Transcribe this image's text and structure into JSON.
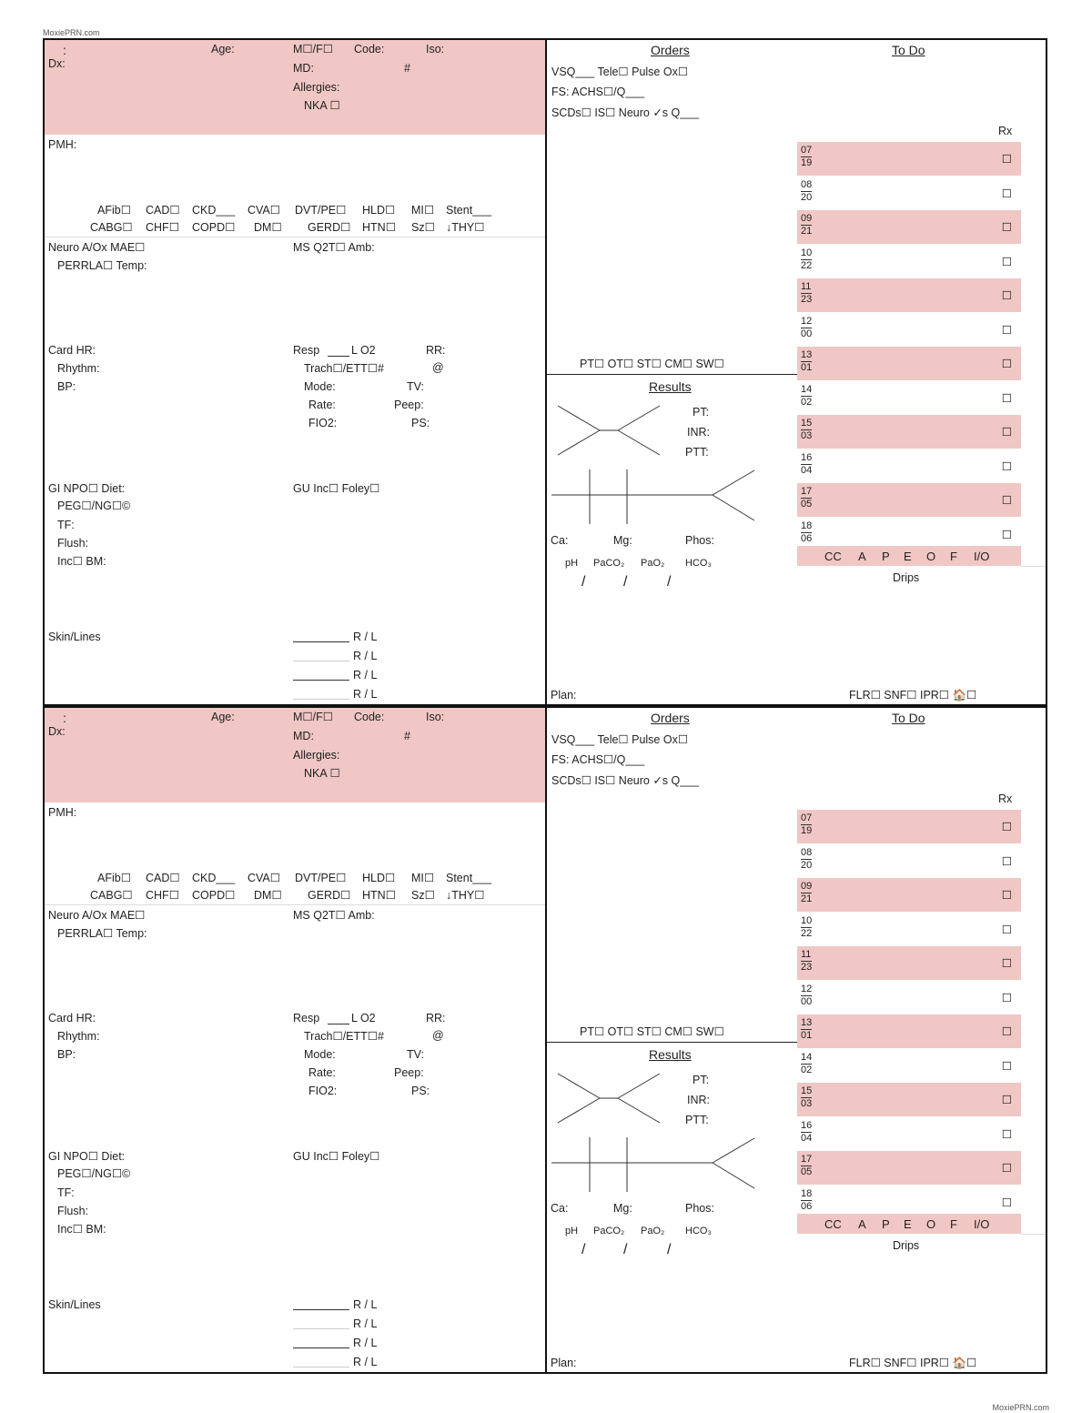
{
  "site": "MoxiePRN.com",
  "sheets": [
    {
      "header": {
        "name_mark": ":",
        "dx": "Dx:",
        "age": "Age:",
        "sex": "M☐/F☐",
        "code": "Code:",
        "iso": "Iso:",
        "md": "MD:",
        "room": "#",
        "allergies": "Allergies:",
        "nka": "NKA ☐"
      },
      "pmh": {
        "label": "PMH:",
        "row1": [
          "AFib☐",
          "CAD☐",
          "CKD___",
          "CVA☐",
          "DVT/PE☐",
          "HLD☐",
          "MI☐",
          "Stent___"
        ],
        "row2": [
          "CABG☐",
          "CHF☐",
          "COPD☐",
          "DM☐",
          "GERD☐",
          "HTN☐",
          "Sz☐",
          "↓THY☐"
        ]
      },
      "neuro": {
        "line1": "Neuro  A/Ox      MAE☐",
        "line2": "PERRLA☐  Temp:",
        "ms": "MS  Q2T☐  Amb:"
      },
      "card": {
        "hr": "Card  HR:",
        "rhythm": "Rhythm:",
        "bp": "BP:"
      },
      "resp": {
        "resp": "Resp",
        "l_o2": "L O2",
        "rr": "RR:",
        "trach": "Trach☐/ETT☐#",
        "at": "@",
        "mode": "Mode:",
        "tv": "TV:",
        "rate": "Rate:",
        "peep": "Peep:",
        "fio2": "FIO2:",
        "ps": "PS:"
      },
      "gi": {
        "line1": "GI  NPO☐  Diet:",
        "line2": "PEG☐/NG☐©",
        "tf": "TF:",
        "flush": "Flush:",
        "inc": "Inc☐  BM:"
      },
      "gu": "GU  Inc☐  Foley☐",
      "skin": {
        "label": "Skin/Lines",
        "rl": [
          "R / L",
          "R / L",
          "R / L",
          "R / L"
        ]
      },
      "orders": {
        "title": "Orders",
        "line1": "VSQ___   Tele☐  Pulse Ox☐",
        "line2": "FS: ACHS☐/Q___",
        "line3": "SCDs☐  IS☐  Neuro ✓s Q___",
        "therapy": "PT☐  OT☐  ST☐  CM☐  SW☐"
      },
      "results": {
        "title": "Results",
        "pt": "PT:",
        "inr": "INR:",
        "ptt": "PTT:",
        "ca": "Ca:",
        "mg": "Mg:",
        "phos": "Phos:",
        "abg": [
          "pH",
          "PaCO₂",
          "PaO₂",
          "HCO₃"
        ],
        "slashes": [
          "/",
          "/",
          "/"
        ]
      },
      "plan": "Plan:",
      "todo": {
        "title": "To Do",
        "rx": "Rx",
        "hours": [
          [
            "07",
            "19"
          ],
          [
            "08",
            "20"
          ],
          [
            "09",
            "21"
          ],
          [
            "10",
            "22"
          ],
          [
            "11",
            "23"
          ],
          [
            "12",
            "00"
          ],
          [
            "13",
            "01"
          ],
          [
            "14",
            "02"
          ],
          [
            "15",
            "03"
          ],
          [
            "16",
            "04"
          ],
          [
            "17",
            "05"
          ],
          [
            "18",
            "06"
          ]
        ],
        "checkbox": "☐",
        "assess": [
          "CC",
          "A",
          "P",
          "E",
          "O",
          "F",
          "I/O"
        ],
        "drips": "Drips",
        "dispo": "FLR☐  SNF☐  IPR☐  🏠☐"
      }
    },
    {
      "header": {
        "name_mark": ":",
        "dx": "Dx:",
        "age": "Age:",
        "sex": "M☐/F☐",
        "code": "Code:",
        "iso": "Iso:",
        "md": "MD:",
        "room": "#",
        "allergies": "Allergies:",
        "nka": "NKA ☐"
      },
      "pmh": {
        "label": "PMH:",
        "row1": [
          "AFib☐",
          "CAD☐",
          "CKD___",
          "CVA☐",
          "DVT/PE☐",
          "HLD☐",
          "MI☐",
          "Stent___"
        ],
        "row2": [
          "CABG☐",
          "CHF☐",
          "COPD☐",
          "DM☐",
          "GERD☐",
          "HTN☐",
          "Sz☐",
          "↓THY☐"
        ]
      },
      "neuro": {
        "line1": "Neuro  A/Ox      MAE☐",
        "line2": "PERRLA☐  Temp:",
        "ms": "MS  Q2T☐  Amb:"
      },
      "card": {
        "hr": "Card  HR:",
        "rhythm": "Rhythm:",
        "bp": "BP:"
      },
      "resp": {
        "resp": "Resp",
        "l_o2": "L O2",
        "rr": "RR:",
        "trach": "Trach☐/ETT☐#",
        "at": "@",
        "mode": "Mode:",
        "tv": "TV:",
        "rate": "Rate:",
        "peep": "Peep:",
        "fio2": "FIO2:",
        "ps": "PS:"
      },
      "gi": {
        "line1": "GI  NPO☐  Diet:",
        "line2": "PEG☐/NG☐©",
        "tf": "TF:",
        "flush": "Flush:",
        "inc": "Inc☐  BM:"
      },
      "gu": "GU  Inc☐  Foley☐",
      "skin": {
        "label": "Skin/Lines",
        "rl": [
          "R / L",
          "R / L",
          "R / L",
          "R / L"
        ]
      },
      "orders": {
        "title": "Orders",
        "line1": "VSQ___   Tele☐  Pulse Ox☐",
        "line2": "FS: ACHS☐/Q___",
        "line3": "SCDs☐  IS☐  Neuro ✓s Q___",
        "therapy": "PT☐  OT☐  ST☐  CM☐  SW☐"
      },
      "results": {
        "title": "Results",
        "pt": "PT:",
        "inr": "INR:",
        "ptt": "PTT:",
        "ca": "Ca:",
        "mg": "Mg:",
        "phos": "Phos:",
        "abg": [
          "pH",
          "PaCO₂",
          "PaO₂",
          "HCO₃"
        ],
        "slashes": [
          "/",
          "/",
          "/"
        ]
      },
      "plan": "Plan:",
      "todo": {
        "title": "To Do",
        "rx": "Rx",
        "hours": [
          [
            "07",
            "19"
          ],
          [
            "08",
            "20"
          ],
          [
            "09",
            "21"
          ],
          [
            "10",
            "22"
          ],
          [
            "11",
            "23"
          ],
          [
            "12",
            "00"
          ],
          [
            "13",
            "01"
          ],
          [
            "14",
            "02"
          ],
          [
            "15",
            "03"
          ],
          [
            "16",
            "04"
          ],
          [
            "17",
            "05"
          ],
          [
            "18",
            "06"
          ]
        ],
        "checkbox": "☐",
        "assess": [
          "CC",
          "A",
          "P",
          "E",
          "O",
          "F",
          "I/O"
        ],
        "drips": "Drips",
        "dispo": "FLR☐  SNF☐  IPR☐  🏠☐"
      }
    }
  ]
}
